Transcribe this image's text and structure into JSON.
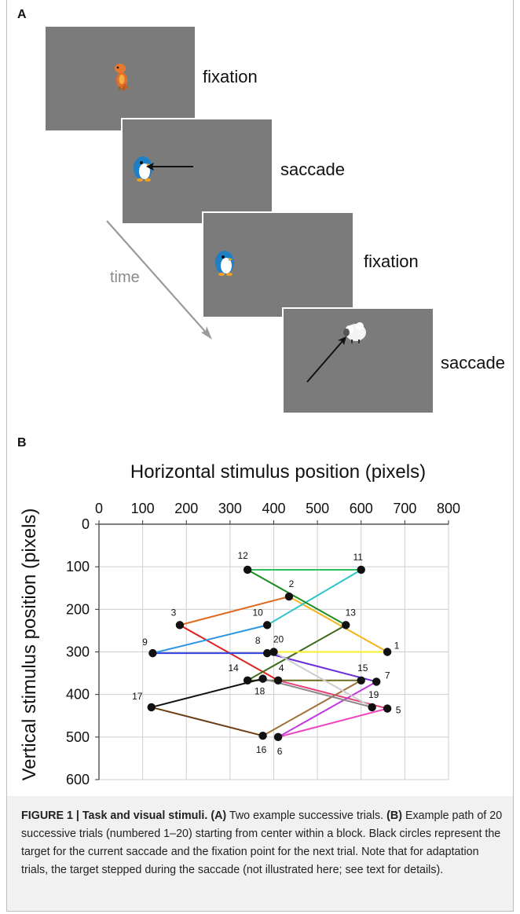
{
  "panel_a": {
    "letter": "A",
    "stages": [
      {
        "label": "fixation",
        "character": "dinosaur-icon"
      },
      {
        "label": "saccade",
        "character": "penguin-icon"
      },
      {
        "label": "fixation",
        "character": "penguin-icon"
      },
      {
        "label": "saccade",
        "character": "sheep-icon"
      }
    ],
    "time_label": "time",
    "colors": {
      "screen": "#7b7b7b",
      "time_arrow": "#9a9a9a"
    }
  },
  "panel_b": {
    "letter": "B"
  },
  "chart_data": {
    "type": "scatter",
    "title": "",
    "xlabel": "Horizontal stimulus position (pixels)",
    "ylabel": "Vertical stimulus position (pixels)",
    "xlim": [
      0,
      800
    ],
    "ylim": [
      0,
      600
    ],
    "y_inverted": true,
    "x_axis_position": "top",
    "grid": true,
    "legend": "none",
    "x_ticks": [
      "0",
      "100",
      "200",
      "300",
      "400",
      "500",
      "600",
      "700",
      "800"
    ],
    "y_ticks": [
      "0",
      "100",
      "200",
      "300",
      "400",
      "500",
      "600"
    ],
    "points": [
      {
        "label": "1",
        "x": 660,
        "y": 300
      },
      {
        "label": "2",
        "x": 435,
        "y": 170
      },
      {
        "label": "3",
        "x": 185,
        "y": 237
      },
      {
        "label": "4",
        "x": 410,
        "y": 367
      },
      {
        "label": "5",
        "x": 660,
        "y": 433
      },
      {
        "label": "6",
        "x": 410,
        "y": 500
      },
      {
        "label": "7",
        "x": 635,
        "y": 370
      },
      {
        "label": "8",
        "x": 385,
        "y": 303
      },
      {
        "label": "9",
        "x": 123,
        "y": 303
      },
      {
        "label": "10",
        "x": 385,
        "y": 237
      },
      {
        "label": "11",
        "x": 600,
        "y": 107
      },
      {
        "label": "12",
        "x": 340,
        "y": 107
      },
      {
        "label": "13",
        "x": 565,
        "y": 237
      },
      {
        "label": "14",
        "x": 340,
        "y": 367
      },
      {
        "label": "15",
        "x": 600,
        "y": 367
      },
      {
        "label": "16",
        "x": 375,
        "y": 497
      },
      {
        "label": "17",
        "x": 120,
        "y": 430
      },
      {
        "label": "18",
        "x": 375,
        "y": 363
      },
      {
        "label": "19",
        "x": 625,
        "y": 430
      },
      {
        "label": "20",
        "x": 400,
        "y": 300
      }
    ],
    "segments": [
      {
        "from": "1",
        "to": "2",
        "color": "#f5b41e"
      },
      {
        "from": "2",
        "to": "3",
        "color": "#e06a1e"
      },
      {
        "from": "3",
        "to": "4",
        "color": "#e02020"
      },
      {
        "from": "4",
        "to": "5",
        "color": "#e8407a"
      },
      {
        "from": "5",
        "to": "6",
        "color": "#ee44c0"
      },
      {
        "from": "6",
        "to": "7",
        "color": "#c03ae0"
      },
      {
        "from": "7",
        "to": "8",
        "color": "#6a2ed8"
      },
      {
        "from": "8",
        "to": "9",
        "color": "#2f3fe0"
      },
      {
        "from": "9",
        "to": "10",
        "color": "#2a95e0"
      },
      {
        "from": "10",
        "to": "11",
        "color": "#2ec4c8"
      },
      {
        "from": "11",
        "to": "12",
        "color": "#2ebf5a"
      },
      {
        "from": "12",
        "to": "13",
        "color": "#1e8c1e"
      },
      {
        "from": "13",
        "to": "14",
        "color": "#3f6a1e"
      },
      {
        "from": "14",
        "to": "15",
        "color": "#6a6e1e"
      },
      {
        "from": "15",
        "to": "16",
        "color": "#a0703a"
      },
      {
        "from": "16",
        "to": "17",
        "color": "#6e3f12"
      },
      {
        "from": "17",
        "to": "18",
        "color": "#111111"
      },
      {
        "from": "18",
        "to": "19",
        "color": "#8a8a8a"
      },
      {
        "from": "19",
        "to": "20",
        "color": "#cccccc"
      },
      {
        "from": "20",
        "to": "1",
        "color": "#f5ef2e"
      }
    ]
  },
  "caption": {
    "figure_label": "FIGURE 1 | Task and visual stimuli.",
    "a_label": "(A)",
    "a_text": " Two example successive trials.",
    "b_label": "(B)",
    "b_text": " Example path of 20 successive trials (numbered 1–20) starting from center within a block. Black circles represent the target for the current saccade and the fixation point for the next trial. Note that for adaptation trials, the target stepped during the saccade (not illustrated here; see text for details)."
  }
}
